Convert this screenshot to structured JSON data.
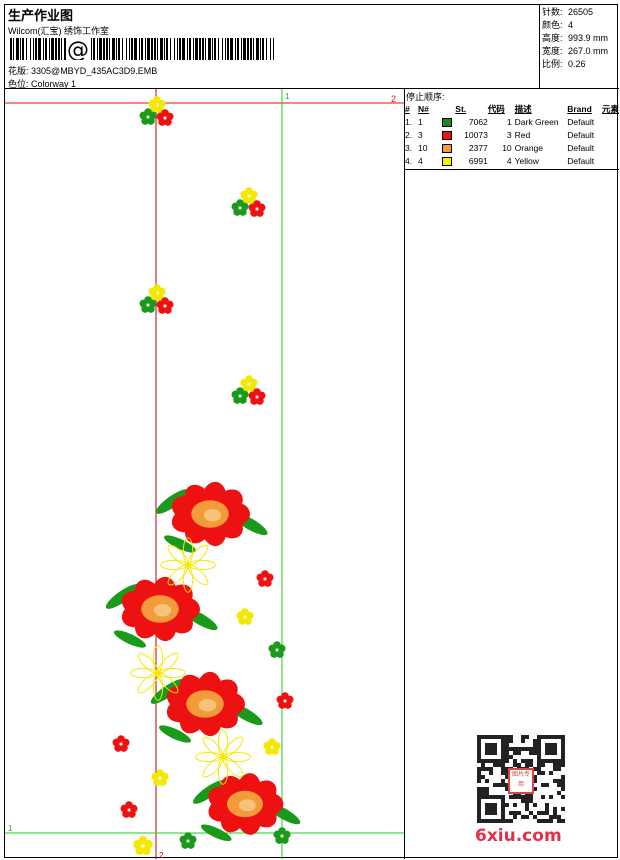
{
  "header": {
    "title": "生产作业图",
    "company": "Wilcom(汇宝) 绣饰工作室",
    "barcode_symbol": "@",
    "design_label": "花版:",
    "design_value": "3305@MBYD_435AC3D9.EMB",
    "colorway_label": "色位:",
    "colorway_value": "Colorway 1"
  },
  "stats": [
    {
      "label": "针数:",
      "value": "26505"
    },
    {
      "label": "颜色:",
      "value": "4"
    },
    {
      "label": "高度:",
      "value": "993.9 mm"
    },
    {
      "label": "宽度:",
      "value": "267.0 mm"
    },
    {
      "label": "比例:",
      "value": "0.26"
    }
  ],
  "stop_sequence": {
    "title": "停止顺序:",
    "columns": [
      "#",
      "N#",
      "St.",
      "代码",
      "描述",
      "Brand",
      "元素"
    ],
    "rows": [
      {
        "no": "1.",
        "n": "1",
        "color": "#1a8a1a",
        "st": "7062",
        "code": "1",
        "desc": "Dark Green",
        "brand": "Default"
      },
      {
        "no": "2.",
        "n": "3",
        "color": "#ee1111",
        "st": "10073",
        "code": "3",
        "desc": "Red",
        "brand": "Default"
      },
      {
        "no": "3.",
        "n": "10",
        "color": "#f39b3a",
        "st": "2377",
        "code": "10",
        "desc": "Orange",
        "brand": "Default"
      },
      {
        "no": "4.",
        "n": "4",
        "color": "#f5f000",
        "st": "6991",
        "code": "4",
        "desc": "Yellow",
        "brand": "Default"
      }
    ]
  },
  "markers": {
    "red_top": "2",
    "green_top": "1",
    "green_bottom": "1",
    "red_bottom": "2"
  },
  "watermark": {
    "site": "6xiu.com",
    "seal": "图片专用"
  },
  "colors": {
    "green": "#1a9a1a",
    "red": "#ee1111",
    "orange": "#f39b3a",
    "yellow": "#f5e800",
    "guide_red": "#c00000",
    "guide_green": "#22cc22"
  }
}
